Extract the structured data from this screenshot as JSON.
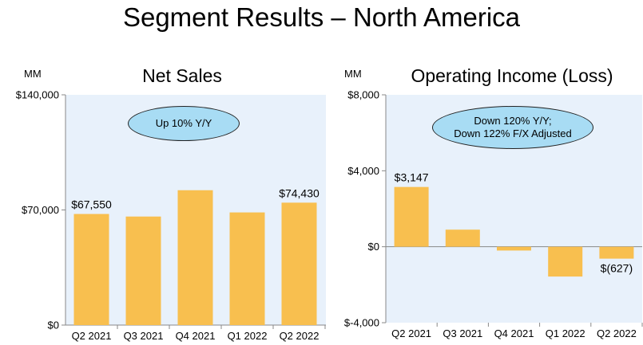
{
  "page_title": "Segment Results – North America",
  "colors": {
    "plot_bg": "#e8f1fb",
    "bar": "#f8bf4f",
    "callout_bg": "#a8dcf4"
  },
  "chart_data": [
    {
      "type": "bar",
      "title": "Net Sales",
      "unit_label": "MM",
      "categories": [
        "Q2 2021",
        "Q3 2021",
        "Q4 2021",
        "Q1 2022",
        "Q2 2022"
      ],
      "values": [
        67550,
        66000,
        82000,
        68500,
        74430
      ],
      "ylim": [
        0,
        140000
      ],
      "yticks": [
        0,
        70000,
        140000
      ],
      "ytick_labels": [
        "$0",
        "$70,000",
        "$140,000"
      ],
      "data_labels": [
        {
          "index": 0,
          "text": "$67,550"
        },
        {
          "index": 4,
          "text": "$74,430"
        }
      ],
      "annotation": "Up 10% Y/Y"
    },
    {
      "type": "bar",
      "title": "Operating Income (Loss)",
      "unit_label": "MM",
      "categories": [
        "Q2 2021",
        "Q3 2021",
        "Q4 2021",
        "Q1 2022",
        "Q2 2022"
      ],
      "values": [
        3147,
        900,
        -200,
        -1570,
        -627
      ],
      "ylim": [
        -4000,
        8000
      ],
      "yticks": [
        -4000,
        0,
        4000,
        8000
      ],
      "ytick_labels": [
        "$-4,000",
        "$0",
        "$4,000",
        "$8,000"
      ],
      "data_labels": [
        {
          "index": 0,
          "text": "$3,147"
        },
        {
          "index": 4,
          "text": "$(627)"
        }
      ],
      "annotation_lines": [
        "Down 120% Y/Y;",
        "Down 122% F/X Adjusted"
      ]
    }
  ]
}
